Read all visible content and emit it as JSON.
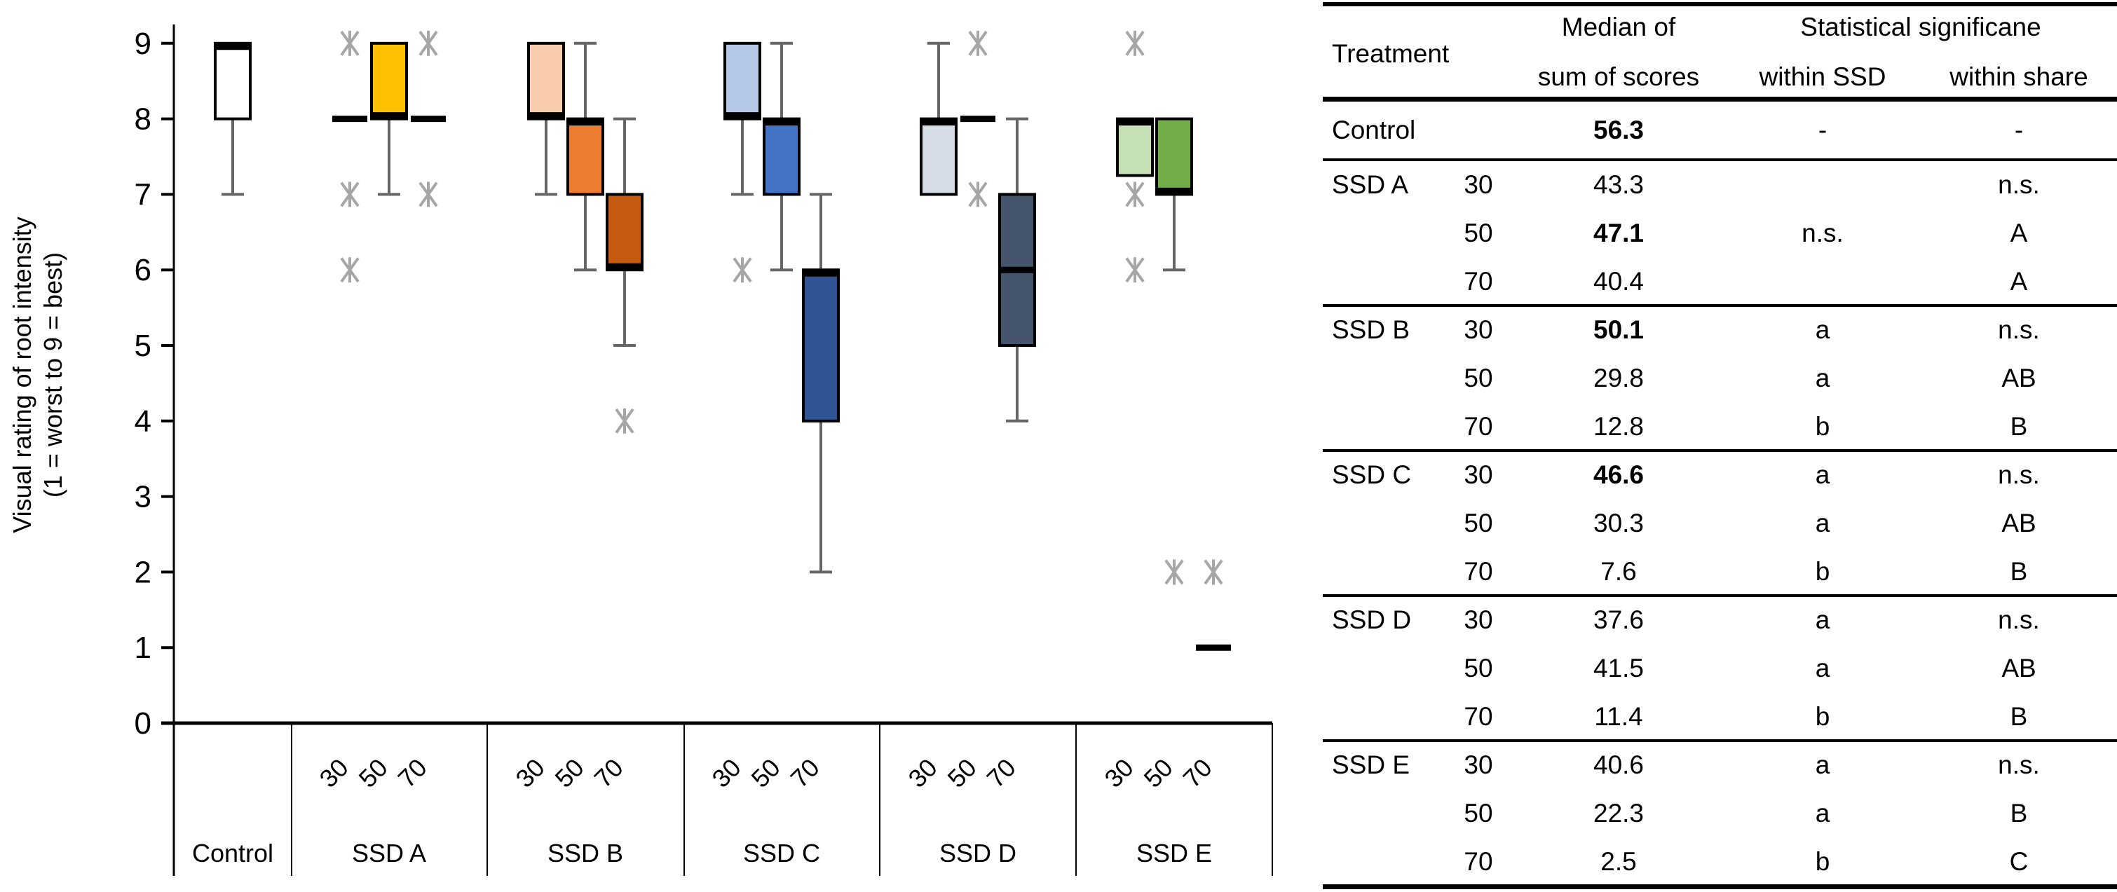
{
  "chart_data": {
    "type": "boxplot",
    "ylabel_line1": "Visual rating of root intensity",
    "ylabel_line2": "(1 = worst to 9 = best)",
    "ylim": [
      0,
      9
    ],
    "yticks": [
      "0",
      "1",
      "2",
      "3",
      "4",
      "5",
      "6",
      "7",
      "8",
      "9"
    ],
    "grid": false,
    "groups": [
      {
        "label": "Control",
        "boxes": [
          {
            "dose": "",
            "q1": 8,
            "median": 9,
            "q3": 9,
            "whisker_low": 7,
            "whisker_high": 9,
            "outliers": [],
            "color": "#FFFFFF"
          }
        ]
      },
      {
        "label": "SSD A",
        "boxes": [
          {
            "dose": "30",
            "q1": 8,
            "median": 8,
            "q3": 8,
            "whisker_low": 8,
            "whisker_high": 8,
            "outliers": [
              9,
              7,
              6
            ],
            "color": "#FFC000"
          },
          {
            "dose": "50",
            "q1": 8,
            "median": 8,
            "q3": 9,
            "whisker_low": 7,
            "whisker_high": 9,
            "outliers": [],
            "color": "#FFC000"
          },
          {
            "dose": "70",
            "q1": 8,
            "median": 8,
            "q3": 8,
            "whisker_low": 8,
            "whisker_high": 8,
            "outliers": [
              9,
              7
            ],
            "color": "#FFC000"
          }
        ]
      },
      {
        "label": "SSD B",
        "boxes": [
          {
            "dose": "30",
            "q1": 8,
            "median": 8,
            "q3": 9,
            "whisker_low": 7,
            "whisker_high": 9,
            "outliers": [],
            "color": "#F8CBAD"
          },
          {
            "dose": "50",
            "q1": 7,
            "median": 8,
            "q3": 8,
            "whisker_low": 6,
            "whisker_high": 9,
            "outliers": [],
            "color": "#ED7D31"
          },
          {
            "dose": "70",
            "q1": 6,
            "median": 6,
            "q3": 7,
            "whisker_low": 5,
            "whisker_high": 8,
            "outliers": [
              4
            ],
            "color": "#C55A11"
          }
        ]
      },
      {
        "label": "SSD C",
        "boxes": [
          {
            "dose": "30",
            "q1": 8,
            "median": 8,
            "q3": 9,
            "whisker_low": 7,
            "whisker_high": 9,
            "outliers": [
              6
            ],
            "color": "#B4C7E7"
          },
          {
            "dose": "50",
            "q1": 7,
            "median": 8,
            "q3": 8,
            "whisker_low": 6,
            "whisker_high": 9,
            "outliers": [],
            "color": "#4472C4"
          },
          {
            "dose": "70",
            "q1": 4,
            "median": 6,
            "q3": 6,
            "whisker_low": 2,
            "whisker_high": 7,
            "outliers": [],
            "color": "#2F5597"
          }
        ]
      },
      {
        "label": "SSD D",
        "boxes": [
          {
            "dose": "30",
            "q1": 7,
            "median": 8,
            "q3": 8,
            "whisker_low": 7,
            "whisker_high": 9,
            "outliers": [],
            "color": "#D6DCE5"
          },
          {
            "dose": "50",
            "q1": 8,
            "median": 8,
            "q3": 8,
            "whisker_low": 8,
            "whisker_high": 8,
            "outliers": [
              9,
              7
            ],
            "color": "#8497B0"
          },
          {
            "dose": "70",
            "q1": 5,
            "median": 6,
            "q3": 7,
            "whisker_low": 4,
            "whisker_high": 8,
            "outliers": [],
            "color": "#44546A"
          }
        ]
      },
      {
        "label": "SSD E",
        "boxes": [
          {
            "dose": "30",
            "q1": 7.25,
            "median": 8,
            "q3": 8,
            "whisker_low": 7.25,
            "whisker_high": 8,
            "outliers": [
              9,
              7,
              6
            ],
            "color": "#C5E0B4"
          },
          {
            "dose": "50",
            "q1": 7,
            "median": 7,
            "q3": 8,
            "whisker_low": 6,
            "whisker_high": 8,
            "outliers": [
              2
            ],
            "color": "#70AD47"
          },
          {
            "dose": "70",
            "q1": 1,
            "median": 1,
            "q3": 1,
            "whisker_low": 1,
            "whisker_high": 1,
            "outliers": [
              2
            ],
            "color": "#548235"
          }
        ]
      }
    ],
    "colors": {
      "whisker": "#666666",
      "outlier": "#A6A6A6",
      "axis": "#000000"
    }
  },
  "table": {
    "header": {
      "treatment": "Treatment",
      "median_line1": "Median of",
      "median_line2": "sum of scores",
      "stat_line1": "Statistical significane",
      "within_ssd": "within SSD",
      "within_share": "within share"
    },
    "control": {
      "name": "Control",
      "median": "56.3",
      "within_ssd": "-",
      "within_share": "-"
    },
    "groups": [
      {
        "name": "SSD A",
        "rows": [
          {
            "dose": "30",
            "median": "43.3",
            "bold": false,
            "within_ssd": "",
            "within_share": "n.s."
          },
          {
            "dose": "50",
            "median": "47.1",
            "bold": true,
            "within_ssd": "n.s.",
            "within_share": "A"
          },
          {
            "dose": "70",
            "median": "40.4",
            "bold": false,
            "within_ssd": "",
            "within_share": "A"
          }
        ]
      },
      {
        "name": "SSD B",
        "rows": [
          {
            "dose": "30",
            "median": "50.1",
            "bold": true,
            "within_ssd": "a",
            "within_share": "n.s."
          },
          {
            "dose": "50",
            "median": "29.8",
            "bold": false,
            "within_ssd": "a",
            "within_share": "AB"
          },
          {
            "dose": "70",
            "median": "12.8",
            "bold": false,
            "within_ssd": "b",
            "within_share": "B"
          }
        ]
      },
      {
        "name": "SSD C",
        "rows": [
          {
            "dose": "30",
            "median": "46.6",
            "bold": true,
            "within_ssd": "a",
            "within_share": "n.s."
          },
          {
            "dose": "50",
            "median": "30.3",
            "bold": false,
            "within_ssd": "a",
            "within_share": "AB"
          },
          {
            "dose": "70",
            "median": "7.6",
            "bold": false,
            "within_ssd": "b",
            "within_share": "B"
          }
        ]
      },
      {
        "name": "SSD D",
        "rows": [
          {
            "dose": "30",
            "median": "37.6",
            "bold": false,
            "within_ssd": "a",
            "within_share": "n.s."
          },
          {
            "dose": "50",
            "median": "41.5",
            "bold": false,
            "within_ssd": "a",
            "within_share": "AB"
          },
          {
            "dose": "70",
            "median": "11.4",
            "bold": false,
            "within_ssd": "b",
            "within_share": "B"
          }
        ]
      },
      {
        "name": "SSD E",
        "rows": [
          {
            "dose": "30",
            "median": "40.6",
            "bold": false,
            "within_ssd": "a",
            "within_share": "n.s."
          },
          {
            "dose": "50",
            "median": "22.3",
            "bold": false,
            "within_ssd": "a",
            "within_share": "B"
          },
          {
            "dose": "70",
            "median": "2.5",
            "bold": false,
            "within_ssd": "b",
            "within_share": "C"
          }
        ]
      }
    ]
  }
}
